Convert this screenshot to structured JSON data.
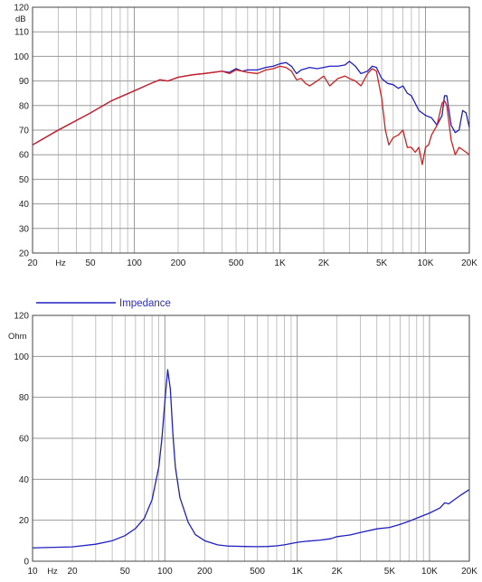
{
  "chart_data": [
    {
      "type": "line",
      "x_scale": "log",
      "xlim": [
        20,
        20000
      ],
      "ylim": [
        20,
        120
      ],
      "grid": true,
      "y_unit": "dB",
      "x_unit": "Hz",
      "x_ticks": [
        {
          "v": 20,
          "label": "20"
        },
        {
          "v": 50,
          "label": "50"
        },
        {
          "v": 100,
          "label": "100"
        },
        {
          "v": 200,
          "label": "200"
        },
        {
          "v": 500,
          "label": "500"
        },
        {
          "v": 1000,
          "label": "1K"
        },
        {
          "v": 2000,
          "label": "2K"
        },
        {
          "v": 5000,
          "label": "5K"
        },
        {
          "v": 10000,
          "label": "10K"
        },
        {
          "v": 20000,
          "label": "20K"
        }
      ],
      "y_ticks": [
        20,
        30,
        40,
        50,
        60,
        70,
        80,
        90,
        100,
        110,
        120
      ],
      "series": [
        {
          "color": "#2020c0",
          "x": [
            20,
            30,
            50,
            70,
            100,
            130,
            150,
            170,
            200,
            250,
            300,
            350,
            400,
            450,
            500,
            550,
            600,
            700,
            800,
            900,
            1000,
            1100,
            1200,
            1300,
            1400,
            1500,
            1600,
            1800,
            2000,
            2200,
            2500,
            2800,
            3000,
            3300,
            3600,
            4000,
            4300,
            4600,
            5000,
            5500,
            6000,
            6500,
            7000,
            7500,
            8000,
            9000,
            10000,
            11000,
            12000,
            13000,
            13500,
            14000,
            15000,
            16000,
            17000,
            18000,
            19000,
            20000
          ],
          "y": [
            64,
            70,
            77,
            82,
            86,
            89,
            90.5,
            90,
            91.5,
            92.5,
            93,
            93.5,
            94,
            93.5,
            95,
            94,
            94.5,
            94.5,
            95.5,
            96,
            97,
            97.5,
            96,
            93,
            94.5,
            95,
            95.5,
            95,
            95.5,
            96,
            96,
            96.5,
            98,
            96,
            93,
            94,
            96,
            95.5,
            91,
            89,
            88.5,
            87,
            88,
            85,
            84,
            78,
            76,
            75,
            72,
            76,
            84,
            84,
            72,
            69,
            70,
            78,
            77,
            71
          ]
        },
        {
          "color": "#d02020",
          "x": [
            20,
            30,
            50,
            70,
            100,
            130,
            150,
            170,
            200,
            250,
            300,
            350,
            400,
            450,
            500,
            550,
            600,
            700,
            800,
            900,
            1000,
            1100,
            1200,
            1300,
            1400,
            1500,
            1600,
            1800,
            2000,
            2200,
            2500,
            2800,
            3000,
            3300,
            3600,
            4000,
            4300,
            4600,
            5000,
            5300,
            5600,
            6000,
            6500,
            7000,
            7500,
            8000,
            8500,
            9000,
            9500,
            10000,
            10500,
            11000,
            12000,
            13000,
            13500,
            14000,
            15000,
            16000,
            17000,
            18000,
            19000,
            20000
          ],
          "y": [
            64,
            70,
            77,
            82,
            86,
            89,
            90.5,
            90,
            91.5,
            92.5,
            93,
            93.5,
            94,
            93,
            94.5,
            94,
            93.5,
            93,
            94.5,
            95,
            96,
            95.5,
            94,
            90.5,
            91,
            89,
            88,
            90,
            92,
            88,
            91,
            92,
            91,
            90,
            88,
            93,
            95,
            94,
            83,
            70,
            64,
            67,
            68,
            70,
            63,
            63,
            61,
            63,
            56,
            63,
            64,
            68,
            72,
            81,
            82,
            80,
            66,
            60,
            63,
            62,
            61,
            60
          ]
        }
      ]
    },
    {
      "type": "line",
      "x_scale": "log",
      "xlim": [
        10,
        20000
      ],
      "ylim": [
        0,
        120
      ],
      "grid": true,
      "y_unit": "Ohm",
      "x_unit": "Hz",
      "legend_position": "top-left",
      "x_ticks": [
        {
          "v": 10,
          "label": "10"
        },
        {
          "v": 20,
          "label": "20"
        },
        {
          "v": 50,
          "label": "50"
        },
        {
          "v": 100,
          "label": "100"
        },
        {
          "v": 200,
          "label": "200"
        },
        {
          "v": 500,
          "label": "500"
        },
        {
          "v": 1000,
          "label": "1K"
        },
        {
          "v": 2000,
          "label": "2K"
        },
        {
          "v": 5000,
          "label": "5K"
        },
        {
          "v": 10000,
          "label": "10K"
        },
        {
          "v": 20000,
          "label": "20K"
        }
      ],
      "y_ticks": [
        0,
        20,
        40,
        60,
        80,
        100,
        120
      ],
      "series": [
        {
          "name": "Impedance",
          "color": "#2020c0",
          "x": [
            10,
            20,
            30,
            40,
            50,
            60,
            70,
            80,
            90,
            95,
            100,
            105,
            110,
            115,
            120,
            130,
            150,
            170,
            200,
            250,
            300,
            400,
            500,
            600,
            700,
            800,
            1000,
            1200,
            1500,
            1800,
            2000,
            2500,
            3000,
            4000,
            5000,
            6000,
            7000,
            8000,
            10000,
            12000,
            13000,
            14000,
            15000,
            17000,
            20000
          ],
          "y": [
            6.5,
            7,
            8.3,
            10,
            12.5,
            16,
            21,
            30,
            46,
            60,
            78,
            93.5,
            84,
            62,
            46,
            31,
            19,
            13,
            10,
            8,
            7.4,
            7.2,
            7.1,
            7.2,
            7.5,
            8,
            9.2,
            9.8,
            10.3,
            11,
            12,
            12.8,
            14,
            15.8,
            16.5,
            18,
            19.5,
            21,
            23.5,
            26,
            28.5,
            28,
            29.5,
            32,
            35
          ]
        }
      ]
    }
  ]
}
